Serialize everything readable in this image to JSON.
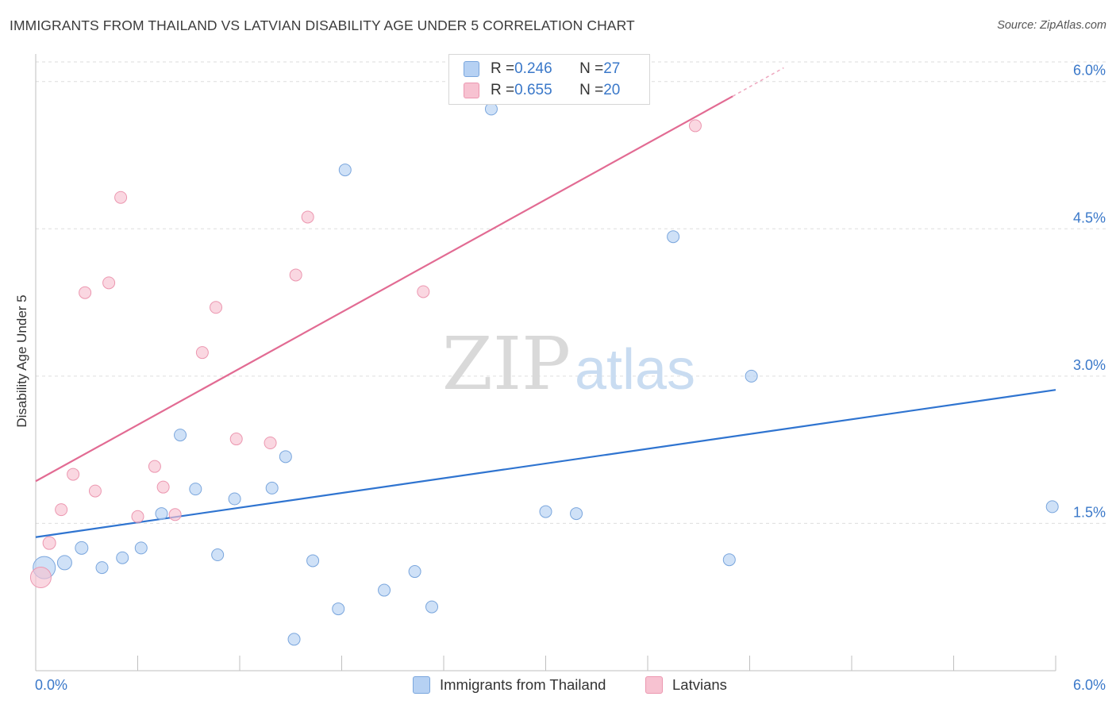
{
  "title": "IMMIGRANTS FROM THAILAND VS LATVIAN DISABILITY AGE UNDER 5 CORRELATION CHART",
  "source": "Source: ZipAtlas.com",
  "watermark": {
    "zip": "ZIP",
    "atlas": "atlas"
  },
  "colors": {
    "blue_fill": "#b6d1f3",
    "blue_stroke": "#7aa6dd",
    "blue_line": "#2f74d0",
    "pink_fill": "#f7c2d1",
    "pink_stroke": "#ec97b0",
    "pink_line": "#e26b93",
    "axis_label": "#3a78c9",
    "grid": "#dedede"
  },
  "legend": {
    "rows": [
      {
        "r_label": "R = ",
        "r_value": "0.246",
        "n_label": "N = ",
        "n_value": "27"
      },
      {
        "r_label": "R = ",
        "r_value": "0.655",
        "n_label": "N = ",
        "n_value": "20"
      }
    ]
  },
  "bottom_legend": {
    "series1": "Immigrants from Thailand",
    "series2": "Latvians"
  },
  "chart_data": {
    "type": "scatter",
    "title": "IMMIGRANTS FROM THAILAND VS LATVIAN DISABILITY AGE UNDER 5 CORRELATION CHART",
    "xlabel": "",
    "ylabel": "Disability Age Under 5",
    "xlim": [
      0.0,
      6.0
    ],
    "ylim": [
      0.0,
      6.2
    ],
    "x_tick_labels": [
      "0.0%",
      "6.0%"
    ],
    "y_ticks": [
      1.5,
      3.0,
      4.5,
      6.0
    ],
    "y_tick_labels": [
      "1.5%",
      "3.0%",
      "4.5%",
      "6.0%"
    ],
    "series": [
      {
        "name": "Immigrants from Thailand",
        "r": 0.246,
        "n": 27,
        "points": [
          [
            0.05,
            1.05,
            28
          ],
          [
            0.17,
            1.1,
            18
          ],
          [
            0.27,
            1.25,
            16
          ],
          [
            0.39,
            1.05,
            15
          ],
          [
            0.51,
            1.15,
            15
          ],
          [
            0.62,
            1.25,
            15
          ],
          [
            0.74,
            1.6,
            15
          ],
          [
            0.85,
            2.4,
            15
          ],
          [
            0.94,
            1.85,
            15
          ],
          [
            1.07,
            1.18,
            15
          ],
          [
            1.17,
            1.75,
            15
          ],
          [
            1.39,
            1.86,
            15
          ],
          [
            1.47,
            2.18,
            15
          ],
          [
            1.52,
            0.32,
            15
          ],
          [
            1.63,
            1.12,
            15
          ],
          [
            1.78,
            0.63,
            15
          ],
          [
            1.82,
            5.1,
            15
          ],
          [
            2.05,
            0.82,
            15
          ],
          [
            2.23,
            1.01,
            15
          ],
          [
            2.33,
            0.65,
            15
          ],
          [
            2.68,
            5.72,
            15
          ],
          [
            3.0,
            1.62,
            15
          ],
          [
            3.18,
            1.6,
            15
          ],
          [
            3.75,
            4.42,
            15
          ],
          [
            4.08,
            1.13,
            15
          ],
          [
            4.21,
            3.0,
            15
          ],
          [
            5.98,
            1.67,
            15
          ]
        ],
        "trend": {
          "x": [
            0.0,
            6.0
          ],
          "y": [
            1.36,
            2.86
          ]
        }
      },
      {
        "name": "Latvians",
        "r": 0.655,
        "n": 20,
        "points": [
          [
            0.03,
            0.95,
            26
          ],
          [
            0.08,
            1.3,
            16
          ],
          [
            0.15,
            1.64,
            15
          ],
          [
            0.22,
            2.0,
            15
          ],
          [
            0.29,
            3.85,
            15
          ],
          [
            0.35,
            1.83,
            15
          ],
          [
            0.43,
            3.95,
            15
          ],
          [
            0.5,
            4.82,
            15
          ],
          [
            0.6,
            1.57,
            15
          ],
          [
            0.7,
            2.08,
            15
          ],
          [
            0.75,
            1.87,
            15
          ],
          [
            0.82,
            1.59,
            15
          ],
          [
            0.98,
            3.24,
            15
          ],
          [
            1.06,
            3.7,
            15
          ],
          [
            1.18,
            2.36,
            15
          ],
          [
            1.38,
            2.32,
            15
          ],
          [
            1.53,
            4.03,
            15
          ],
          [
            1.6,
            4.62,
            15
          ],
          [
            2.28,
            3.86,
            15
          ],
          [
            3.88,
            5.55,
            15
          ]
        ],
        "trend": {
          "x": [
            0.0,
            4.1
          ],
          "y": [
            1.93,
            5.85
          ]
        },
        "trend_dashed": {
          "x": [
            4.1,
            4.4
          ],
          "y": [
            5.85,
            6.14
          ]
        }
      }
    ]
  }
}
